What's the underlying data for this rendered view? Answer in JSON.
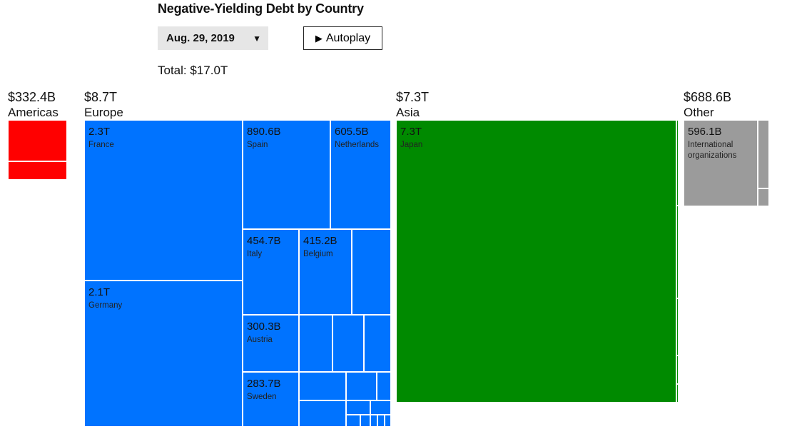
{
  "header": {
    "title": "Negative-Yielding Debt by Country",
    "date": "Aug. 29, 2019",
    "date_caret": "▼",
    "autoplay_icon": "▶",
    "autoplay_label": "Autoplay",
    "total": "Total: $17.0T"
  },
  "colors": {
    "Americas": "#ff0000",
    "Europe": "#0073ff",
    "Asia": "#008a00",
    "Other": "#9b9b9b"
  },
  "chart_data": {
    "type": "treemap",
    "title": "Negative-Yielding Debt by Country",
    "total_billions": 17000,
    "groups": [
      {
        "name": "Americas",
        "total_label": "$332.4B",
        "total_billions": 332.4,
        "color": "#ff0000",
        "items": [
          {
            "label": "",
            "value_label": "",
            "value_billions": null
          },
          {
            "label": "",
            "value_label": "",
            "value_billions": null
          }
        ]
      },
      {
        "name": "Europe",
        "total_label": "$8.7T",
        "total_billions": 8700,
        "color": "#0073ff",
        "items": [
          {
            "label": "France",
            "value_label": "2.3T",
            "value_billions": 2300
          },
          {
            "label": "Germany",
            "value_label": "2.1T",
            "value_billions": 2100
          },
          {
            "label": "Spain",
            "value_label": "890.6B",
            "value_billions": 890.6
          },
          {
            "label": "Netherlands",
            "value_label": "605.5B",
            "value_billions": 605.5
          },
          {
            "label": "Italy",
            "value_label": "454.7B",
            "value_billions": 454.7
          },
          {
            "label": "Belgium",
            "value_label": "415.2B",
            "value_billions": 415.2
          },
          {
            "label": "Austria",
            "value_label": "300.3B",
            "value_billions": 300.3
          },
          {
            "label": "Sweden",
            "value_label": "283.7B",
            "value_billions": 283.7
          }
        ]
      },
      {
        "name": "Asia",
        "total_label": "$7.3T",
        "total_billions": 7300,
        "color": "#008a00",
        "items": [
          {
            "label": "Japan",
            "value_label": "7.3T",
            "value_billions": 7300
          }
        ]
      },
      {
        "name": "Other",
        "total_label": "$688.6B",
        "total_billions": 688.6,
        "color": "#9b9b9b",
        "items": [
          {
            "label": "International organizations",
            "value_label": "596.1B",
            "value_billions": 596.1
          }
        ]
      }
    ]
  }
}
